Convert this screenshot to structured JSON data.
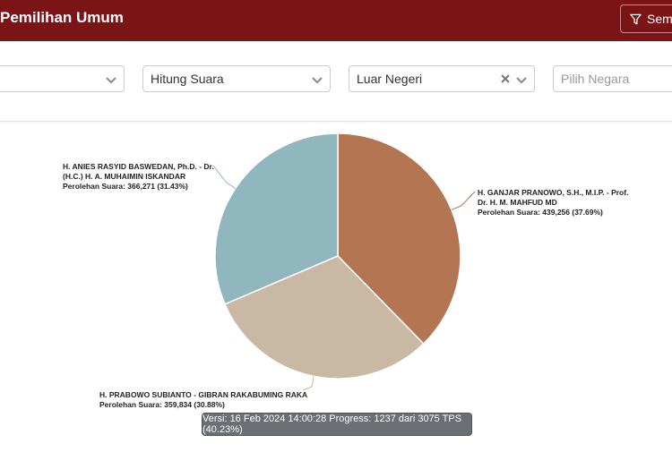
{
  "header": {
    "title": "Pemilihan Umum",
    "filter_button_label": "Sem"
  },
  "filters": {
    "select1": {
      "value": ""
    },
    "select2": {
      "value": "Hitung Suara"
    },
    "select3": {
      "value": "Luar Negeri"
    },
    "select4": {
      "placeholder": "Pilih Negara"
    }
  },
  "chart_data": {
    "type": "pie",
    "slices": [
      {
        "name_line1": "H. GANJAR PRANOWO, S.H., M.I.P. - Prof.",
        "name_line2": "Dr. H. M. MAHFUD MD",
        "votes_label": "Perolehan Suara: 439,256 (37.69%)",
        "value": 439256,
        "percent": 37.69,
        "color": "#b47552"
      },
      {
        "name_line1": "H. PRABOWO SUBIANTO - GIBRAN RAKABUMING RAKA",
        "name_line2": "",
        "votes_label": "Perolehan Suara: 359,834 (30.88%)",
        "value": 359834,
        "percent": 30.88,
        "color": "#c9b8a3"
      },
      {
        "name_line1": "H. ANIES RASYID BASWEDAN, Ph.D. - Dr.",
        "name_line2": "(H.C.) H. A. MUHAIMIN ISKANDAR",
        "votes_label": "Perolehan Suara: 366,271 (31.43%)",
        "value": 366271,
        "percent": 31.43,
        "color": "#8fb7bd"
      }
    ]
  },
  "tooltip": {
    "text": "Versi: 16 Feb 2024 14:00:28 Progress: 1237 dari 3075 TPS (40.23%)"
  },
  "icons": {
    "filter": "filter-icon",
    "chevron": "chevron-down-icon",
    "clear": "close-icon"
  }
}
